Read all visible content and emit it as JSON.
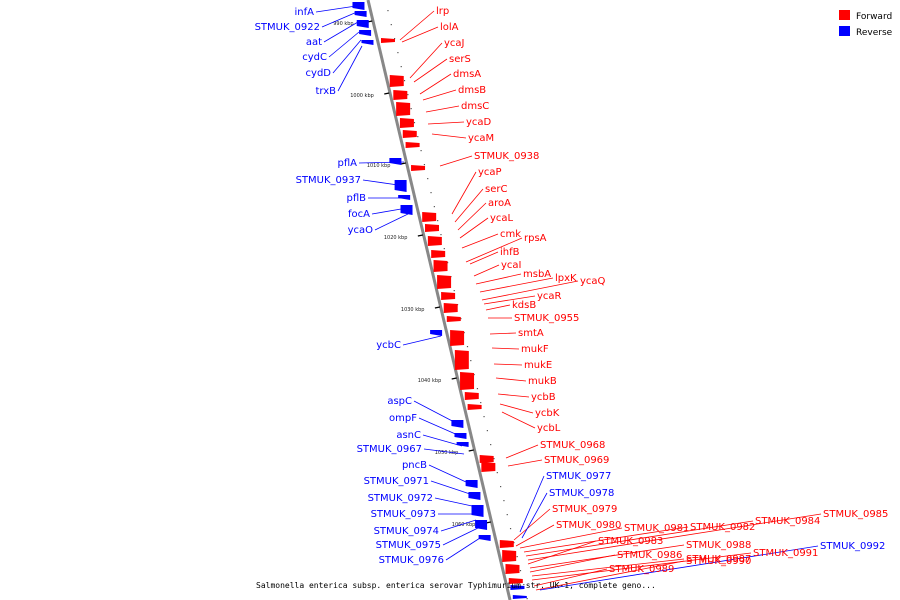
{
  "caption": "Salmonella enterica subsp. enterica serovar Typhimurium str. UK-1, complete geno...",
  "legend": [
    {
      "name": "Forward",
      "color": "#ff0000"
    },
    {
      "name": "Reverse",
      "color": "#0000ff"
    }
  ],
  "ticks": [
    "990 kbp",
    "1000 kbp",
    "1010 kbp",
    "1020 kbp",
    "1030 kbp",
    "1040 kbp",
    "1050 kbp",
    "1060 kbp"
  ],
  "genes": {
    "reverse_left": [
      "infA",
      "STMUK_0922",
      "aat",
      "cydC",
      "cydD",
      "trxB",
      "pflA",
      "STMUK_0937",
      "pflB",
      "focA",
      "ycaO",
      "ycbC",
      "aspC",
      "ompF",
      "asnC",
      "STMUK_0967",
      "pncB",
      "STMUK_0971",
      "STMUK_0972",
      "STMUK_0973",
      "STMUK_0974",
      "STMUK_0975",
      "STMUK_0976"
    ],
    "forward_right": [
      "lrp",
      "lolA",
      "ycaJ",
      "serS",
      "dmsA",
      "dmsB",
      "dmsC",
      "ycaD",
      "ycaM",
      "STMUK_0938",
      "ycaP",
      "serC",
      "aroA",
      "ycaL",
      "cmk",
      "rpsA",
      "ihfB",
      "ycaI",
      "msbA",
      "lpxK",
      "ycaQ",
      "ycaR",
      "kdsB",
      "STMUK_0955",
      "smtA",
      "mukF",
      "mukE",
      "mukB",
      "ycbB",
      "ycbK",
      "ycbL",
      "STMUK_0968",
      "STMUK_0969",
      "STMUK_0979",
      "STMUK_0980",
      "STMUK_0981",
      "STMUK_0982",
      "STMUK_0984",
      "STMUK_0985",
      "STMUK_0983",
      "STMUK_0988",
      "STMUK_0986",
      "STMUK_0987",
      "STMUK_0991",
      "STMUK_0989",
      "STMUK_0990"
    ],
    "reverse_right": [
      "STMUK_0977",
      "STMUK_0978",
      "STMUK_0992"
    ]
  }
}
